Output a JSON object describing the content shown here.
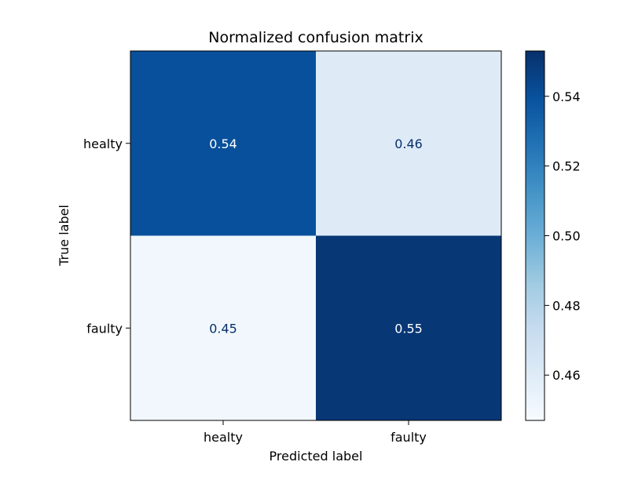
{
  "chart_data": {
    "type": "heatmap",
    "title": "Normalized confusion matrix",
    "xlabel": "Predicted label",
    "ylabel": "True label",
    "x_categories": [
      "healty",
      "faulty"
    ],
    "y_categories": [
      "healty",
      "faulty"
    ],
    "values": [
      [
        0.54,
        0.46
      ],
      [
        0.45,
        0.55
      ]
    ],
    "value_labels": [
      [
        "0.54",
        "0.46"
      ],
      [
        "0.45",
        "0.55"
      ]
    ],
    "colormap": "Blues",
    "colorbar": {
      "vmin": 0.447,
      "vmax": 0.553,
      "ticks": [
        0.46,
        0.48,
        0.5,
        0.52,
        0.54
      ],
      "tick_labels": [
        "0.46",
        "0.48",
        "0.50",
        "0.52",
        "0.54"
      ]
    },
    "grid": false
  }
}
